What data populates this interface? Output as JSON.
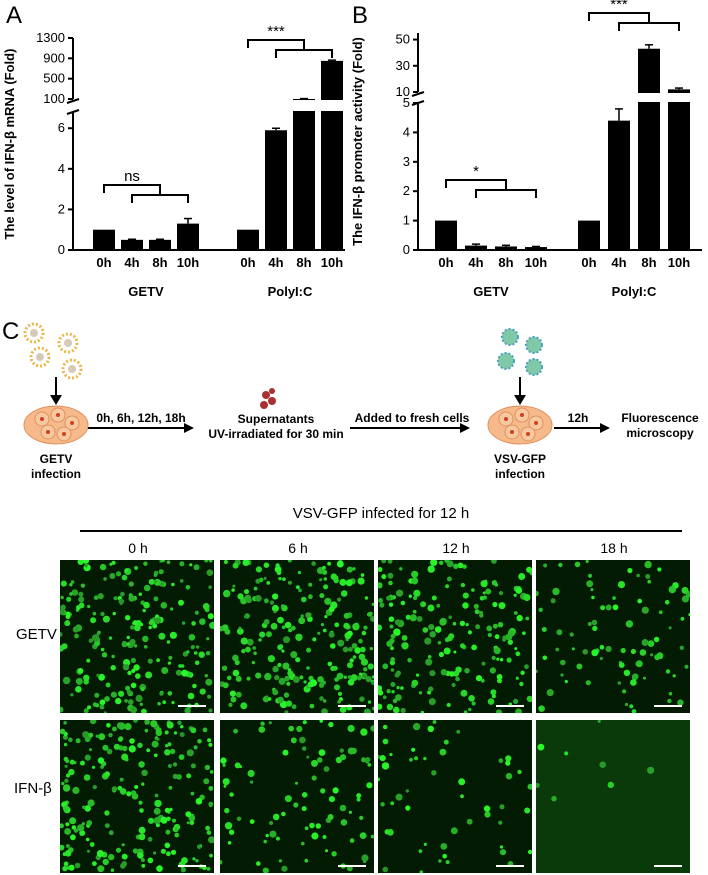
{
  "panels": {
    "a": "A",
    "b": "B",
    "c": "C"
  },
  "chart_data": [
    {
      "id": "A",
      "type": "bar",
      "ylabel": "The level of IFN-β mRNA (Fold)",
      "groups": [
        {
          "name": "GETV",
          "categories": [
            "0h",
            "4h",
            "8h",
            "10h"
          ],
          "values": [
            1.0,
            0.5,
            0.5,
            1.3
          ],
          "errors": [
            0,
            0.03,
            0.03,
            0.25
          ]
        },
        {
          "name": "PolyI:C",
          "categories": [
            "0h",
            "4h",
            "8h",
            "10h"
          ],
          "values": [
            1.0,
            5.9,
            100,
            850
          ],
          "errors": [
            0,
            0.1,
            8,
            15
          ]
        }
      ],
      "y_break": {
        "lower": [
          0,
          6.8
        ],
        "upper": [
          100,
          1300
        ]
      },
      "lower_ticks": [
        0,
        2,
        4,
        6
      ],
      "upper_ticks": [
        100,
        500,
        900,
        1300
      ],
      "significance": [
        {
          "group": "GETV",
          "label": "ns"
        },
        {
          "group": "PolyI:C",
          "label": "***"
        }
      ]
    },
    {
      "id": "B",
      "type": "bar",
      "ylabel": "The IFN-β promoter activity (Fold)",
      "groups": [
        {
          "name": "GETV",
          "categories": [
            "0h",
            "4h",
            "8h",
            "10h"
          ],
          "values": [
            1.0,
            0.15,
            0.12,
            0.1
          ],
          "errors": [
            0,
            0.05,
            0.04,
            0.02
          ]
        },
        {
          "name": "PolyI:C",
          "categories": [
            "0h",
            "4h",
            "8h",
            "10h"
          ],
          "values": [
            1.0,
            4.4,
            43,
            12
          ],
          "errors": [
            0,
            0.4,
            3,
            1
          ]
        }
      ],
      "y_break": {
        "lower": [
          0,
          5
        ],
        "upper": [
          10,
          55
        ]
      },
      "lower_ticks": [
        0,
        1,
        2,
        3,
        4,
        5
      ],
      "upper_ticks": [
        10,
        30,
        50
      ],
      "significance": [
        {
          "group": "GETV",
          "label": "*"
        },
        {
          "group": "PolyI:C",
          "label": "***"
        }
      ]
    }
  ],
  "flow": {
    "getv_label": "GETV\ninfection",
    "times": "0h, 6h, 12h, 18h",
    "supernatants": "Supernatants\nUV-irradiated for 30 min",
    "added": "Added to fresh cells",
    "vsv_label": "VSV-GFP\ninfection",
    "hours": "12h",
    "readout": "Fluorescence\nmicroscopy"
  },
  "micrographs": {
    "title": "VSV-GFP infected for 12 h",
    "columns": [
      "0 h",
      "6 h",
      "12 h",
      "18 h"
    ],
    "rows": [
      {
        "label": "GETV",
        "densities": [
          0.85,
          0.9,
          0.75,
          0.35
        ]
      },
      {
        "label": "IFN-β",
        "densities": [
          0.85,
          0.35,
          0.2,
          0.03
        ]
      }
    ]
  },
  "colors": {
    "bar": "#000000",
    "gfp": "#3ddc3a",
    "virion": "#e8b84a",
    "cell": "#f5b98a",
    "vsv": "#7fc9a8"
  }
}
